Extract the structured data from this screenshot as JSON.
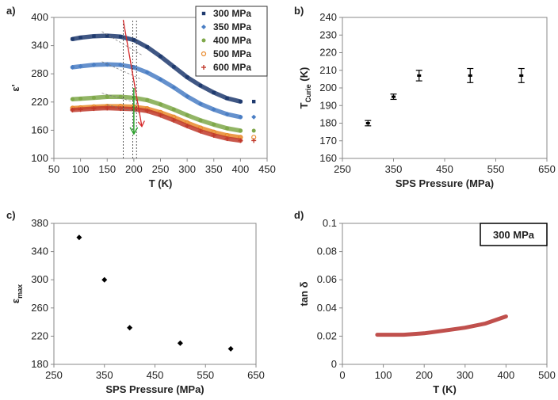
{
  "panel_labels": {
    "a": "a)",
    "b": "b)",
    "c": "c)",
    "d": "d)"
  },
  "chart_data": [
    {
      "panel": "a",
      "type": "line",
      "xlabel": "T (K)",
      "ylabel": "ε'",
      "xlim": [
        50,
        450
      ],
      "ylim": [
        100,
        400
      ],
      "xticks": [
        50,
        100,
        150,
        200,
        250,
        300,
        350,
        400,
        450
      ],
      "yticks": [
        100,
        160,
        220,
        280,
        340,
        400
      ],
      "legend_position": "top-right",
      "series": [
        {
          "name": "300 MPa",
          "color": "#1f3a6e",
          "marker": "square",
          "x": [
            85,
            100,
            125,
            150,
            175,
            200,
            225,
            250,
            275,
            300,
            325,
            350,
            375,
            400
          ],
          "y": [
            354,
            357,
            360,
            361,
            359,
            352,
            337,
            317,
            295,
            273,
            255,
            240,
            228,
            221
          ]
        },
        {
          "name": "350 MPa",
          "color": "#4a7ec4",
          "marker": "diamond",
          "x": [
            85,
            100,
            125,
            150,
            175,
            200,
            225,
            250,
            275,
            300,
            325,
            350,
            375,
            400
          ],
          "y": [
            294,
            296,
            299,
            300,
            299,
            294,
            283,
            268,
            251,
            232,
            216,
            204,
            194,
            188
          ]
        },
        {
          "name": "400 MPa",
          "color": "#7fa84a",
          "marker": "circle",
          "x": [
            85,
            100,
            125,
            150,
            175,
            200,
            225,
            250,
            275,
            300,
            325,
            350,
            375,
            400
          ],
          "y": [
            226,
            227,
            229,
            231,
            231,
            229,
            224,
            215,
            204,
            192,
            181,
            172,
            164,
            159
          ]
        },
        {
          "name": "500 MPa",
          "color": "#e98a2c",
          "marker": "open-circle",
          "x": [
            85,
            100,
            125,
            150,
            175,
            200,
            225,
            250,
            275,
            300,
            325,
            350,
            375,
            400
          ],
          "y": [
            207,
            208,
            210,
            211,
            211,
            210,
            206,
            198,
            188,
            176,
            165,
            156,
            149,
            145
          ]
        },
        {
          "name": "600 MPa",
          "color": "#c0392b",
          "marker": "plus",
          "x": [
            85,
            100,
            125,
            150,
            175,
            200,
            225,
            250,
            275,
            300,
            325,
            350,
            375,
            400
          ],
          "y": [
            203,
            204,
            206,
            207,
            206,
            205,
            201,
            192,
            181,
            169,
            158,
            149,
            142,
            138
          ]
        }
      ]
    },
    {
      "panel": "b",
      "type": "scatter",
      "xlabel": "SPS Pressure (MPa)",
      "ylabel": "T",
      "ylabel_sub": "Curie",
      "ylabel_suffix": " (K)",
      "xlim": [
        250,
        650
      ],
      "ylim": [
        160,
        240
      ],
      "xticks": [
        250,
        350,
        450,
        550,
        650
      ],
      "yticks": [
        160,
        170,
        180,
        190,
        200,
        210,
        220,
        230,
        240
      ],
      "x": [
        300,
        350,
        400,
        500,
        600
      ],
      "y": [
        180,
        195,
        207,
        207,
        207
      ],
      "yerr": [
        1.5,
        1.5,
        3,
        4,
        4
      ]
    },
    {
      "panel": "c",
      "type": "scatter",
      "xlabel": "SPS Pressure (MPa)",
      "ylabel": "ε",
      "ylabel_sub": "max",
      "xlim": [
        250,
        650
      ],
      "ylim": [
        180,
        380
      ],
      "xticks": [
        250,
        350,
        450,
        550,
        650
      ],
      "yticks": [
        180,
        220,
        260,
        300,
        340,
        380
      ],
      "x": [
        300,
        350,
        400,
        500,
        600
      ],
      "y": [
        360,
        300,
        232,
        210,
        202
      ]
    },
    {
      "panel": "d",
      "type": "line",
      "xlabel": "T (K)",
      "ylabel": "tan δ",
      "annotation": "300 MPa",
      "color": "#c0504d",
      "xlim": [
        0,
        500
      ],
      "ylim": [
        0,
        0.1
      ],
      "xticks": [
        0,
        100,
        200,
        300,
        400,
        500
      ],
      "yticks": [
        0,
        0.02,
        0.04,
        0.06,
        0.08,
        0.1
      ],
      "x": [
        85,
        100,
        150,
        200,
        250,
        300,
        350,
        400
      ],
      "y": [
        0.021,
        0.021,
        0.021,
        0.022,
        0.024,
        0.026,
        0.029,
        0.034
      ]
    }
  ]
}
